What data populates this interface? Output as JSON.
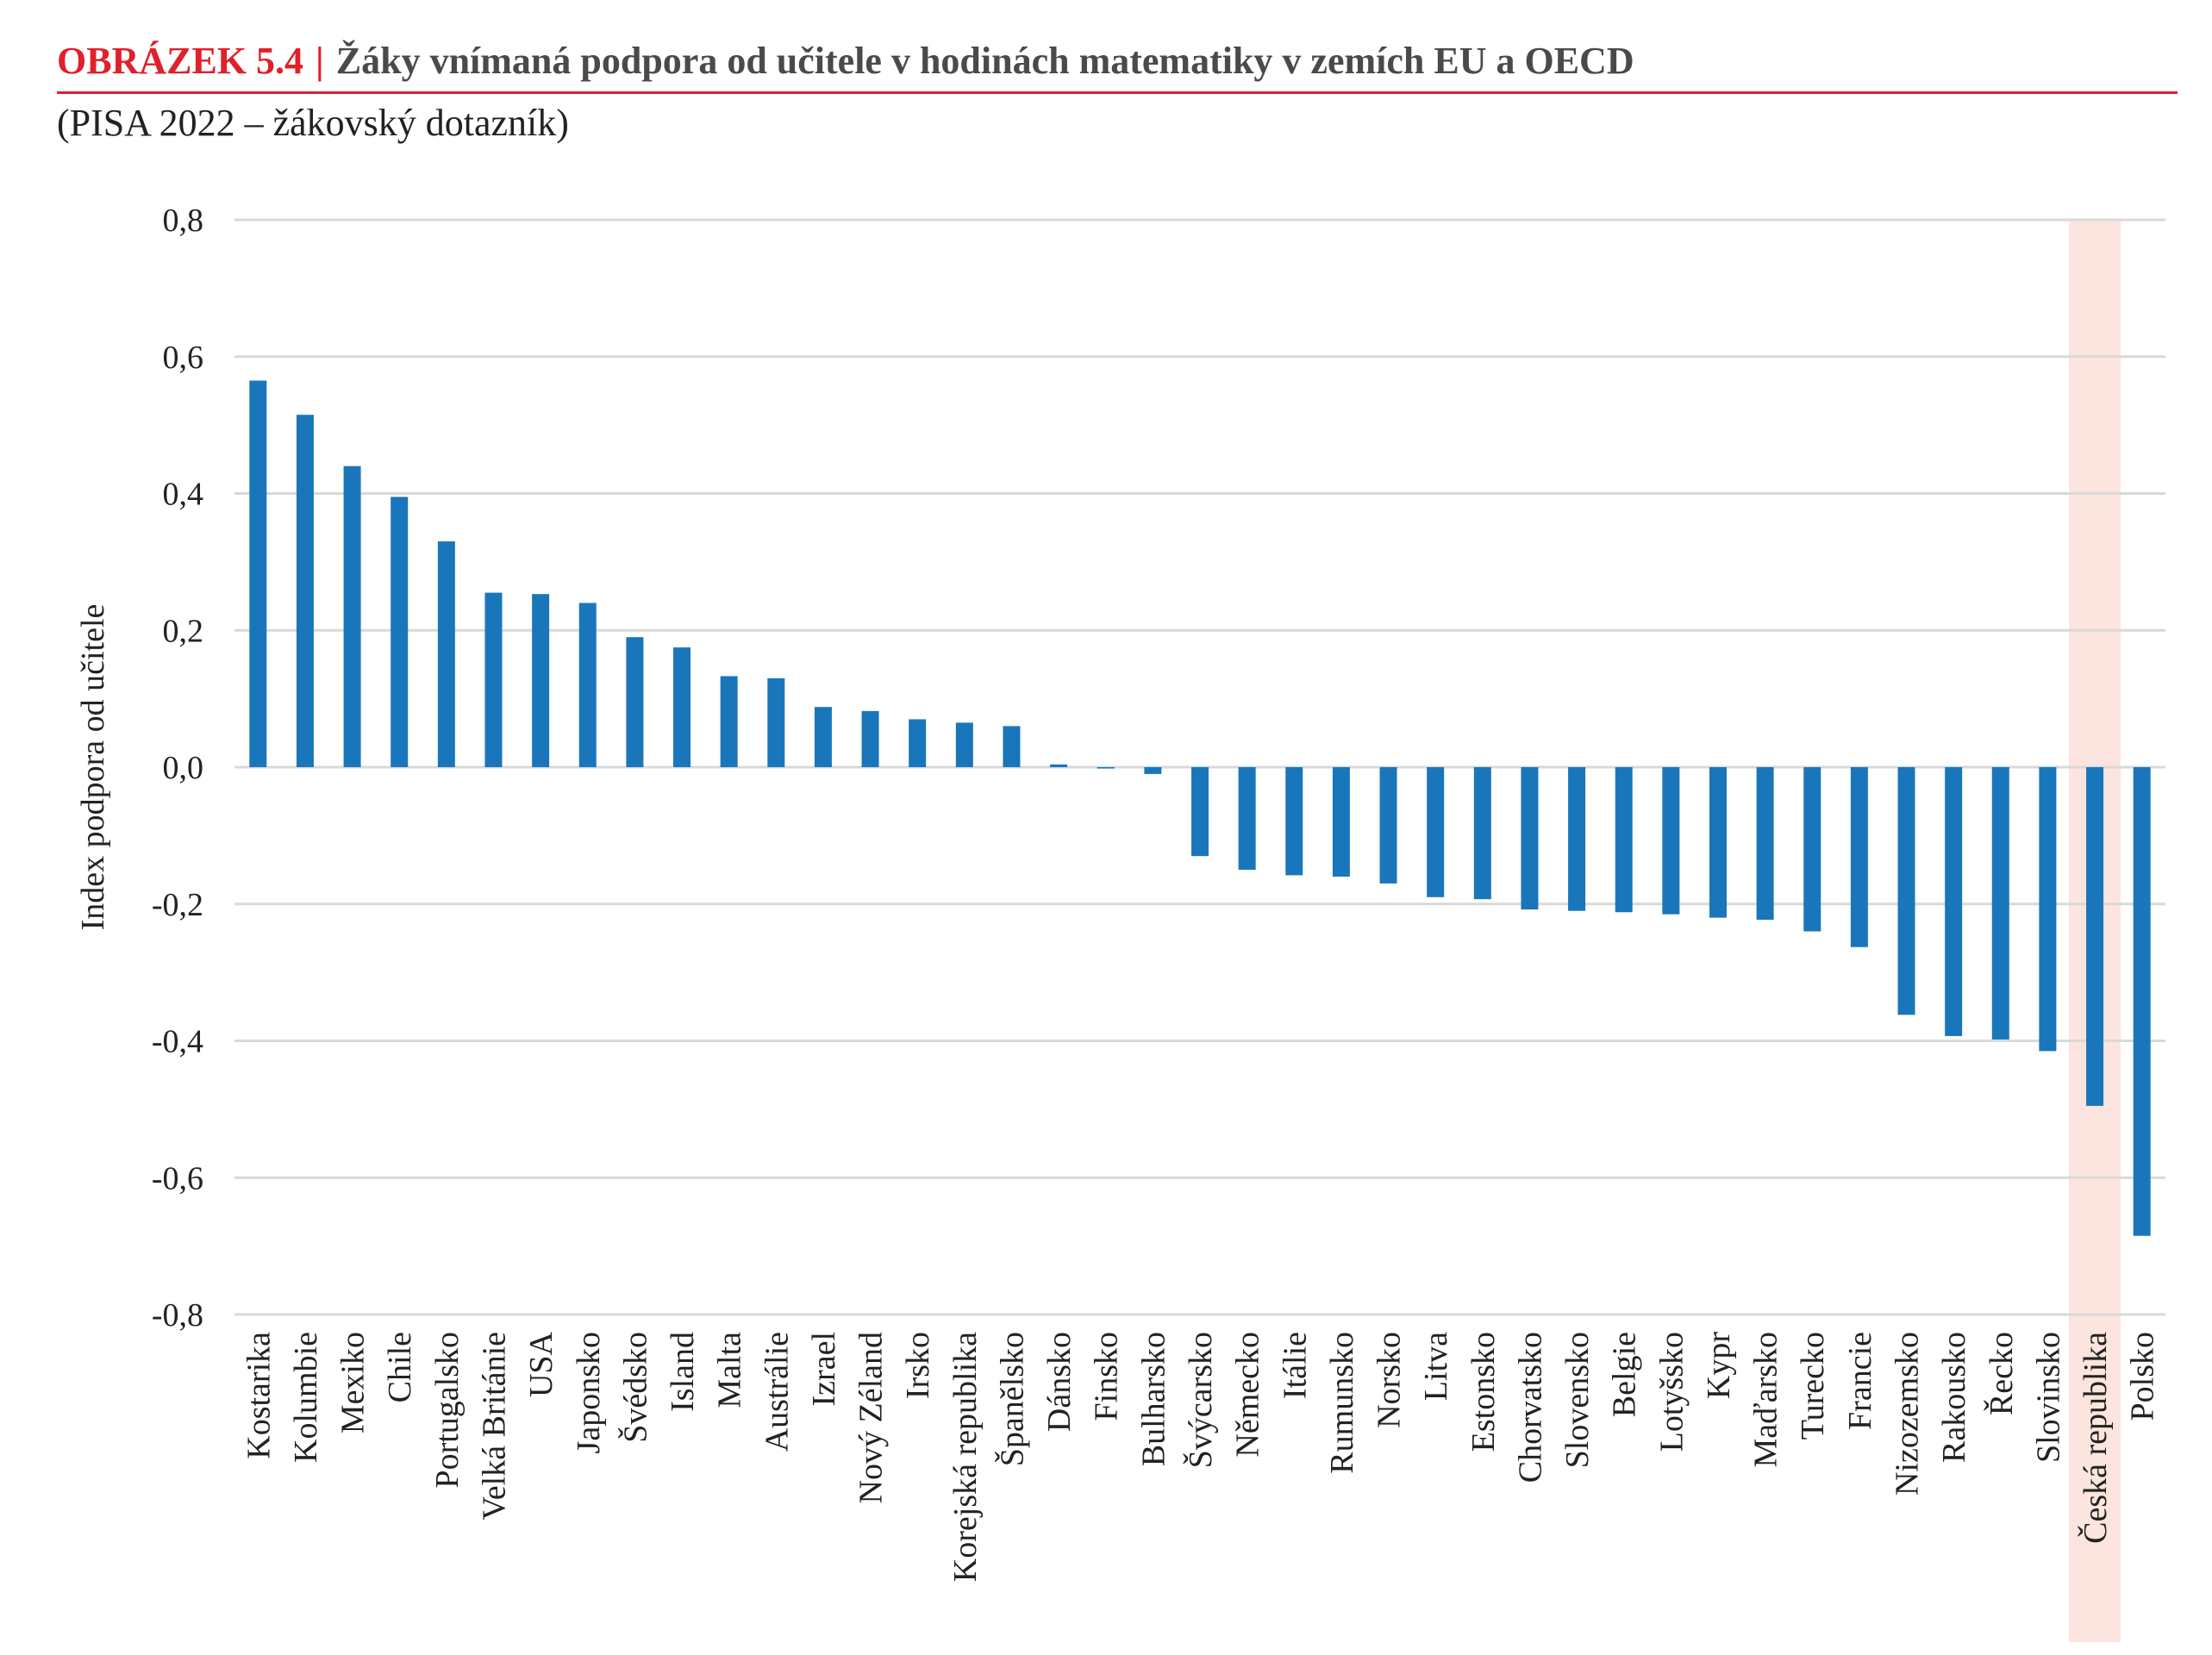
{
  "figure": {
    "label": "OBRÁZEK 5.4",
    "separator": "|",
    "title": "Žáky vnímaná podpora od učitele v hodinách matematiky v zemích EU a OECD",
    "subtitle": "(PISA 2022 – žákovský dotazník)"
  },
  "colors": {
    "bar": "#1a76bb",
    "highlight": "#fbe5de",
    "accent": "#e0202a",
    "grid": "#d9d9d9"
  },
  "chart_data": {
    "type": "bar",
    "ylabel": "Index podpora od učitele",
    "ylim": [
      -0.8,
      0.8
    ],
    "yticks": [
      0.8,
      0.6,
      0.4,
      0.2,
      0.0,
      -0.2,
      -0.4,
      -0.6,
      -0.8
    ],
    "ytick_labels": [
      "0,8",
      "0,6",
      "0,4",
      "0,2",
      "0,0",
      "-0,2",
      "-0,4",
      "-0,6",
      "-0,8"
    ],
    "grid": true,
    "highlighted_category": "Česká republika",
    "categories": [
      "Kostarika",
      "Kolumbie",
      "Mexiko",
      "Chile",
      "Portugalsko",
      "Velká Británie",
      "USA",
      "Japonsko",
      "Švédsko",
      "Island",
      "Malta",
      "Austrálie",
      "Izrael",
      "Nový Zéland",
      "Irsko",
      "Korejská republika",
      "Španělsko",
      "Dánsko",
      "Finsko",
      "Bulharsko",
      "Švýcarsko",
      "Německo",
      "Itálie",
      "Rumunsko",
      "Norsko",
      "Litva",
      "Estonsko",
      "Chorvatsko",
      "Slovensko",
      "Belgie",
      "Lotyšsko",
      "Kypr",
      "Maďarsko",
      "Turecko",
      "Francie",
      "Nizozemsko",
      "Rakousko",
      "Řecko",
      "Slovinsko",
      "Česká republika",
      "Polsko"
    ],
    "values": [
      0.565,
      0.515,
      0.44,
      0.395,
      0.33,
      0.255,
      0.253,
      0.24,
      0.19,
      0.175,
      0.133,
      0.13,
      0.088,
      0.082,
      0.07,
      0.065,
      0.06,
      0.004,
      -0.002,
      -0.01,
      -0.13,
      -0.15,
      -0.158,
      -0.16,
      -0.17,
      -0.19,
      -0.193,
      -0.208,
      -0.21,
      -0.212,
      -0.215,
      -0.22,
      -0.223,
      -0.24,
      -0.263,
      -0.362,
      -0.393,
      -0.398,
      -0.415,
      -0.495,
      -0.685
    ]
  }
}
